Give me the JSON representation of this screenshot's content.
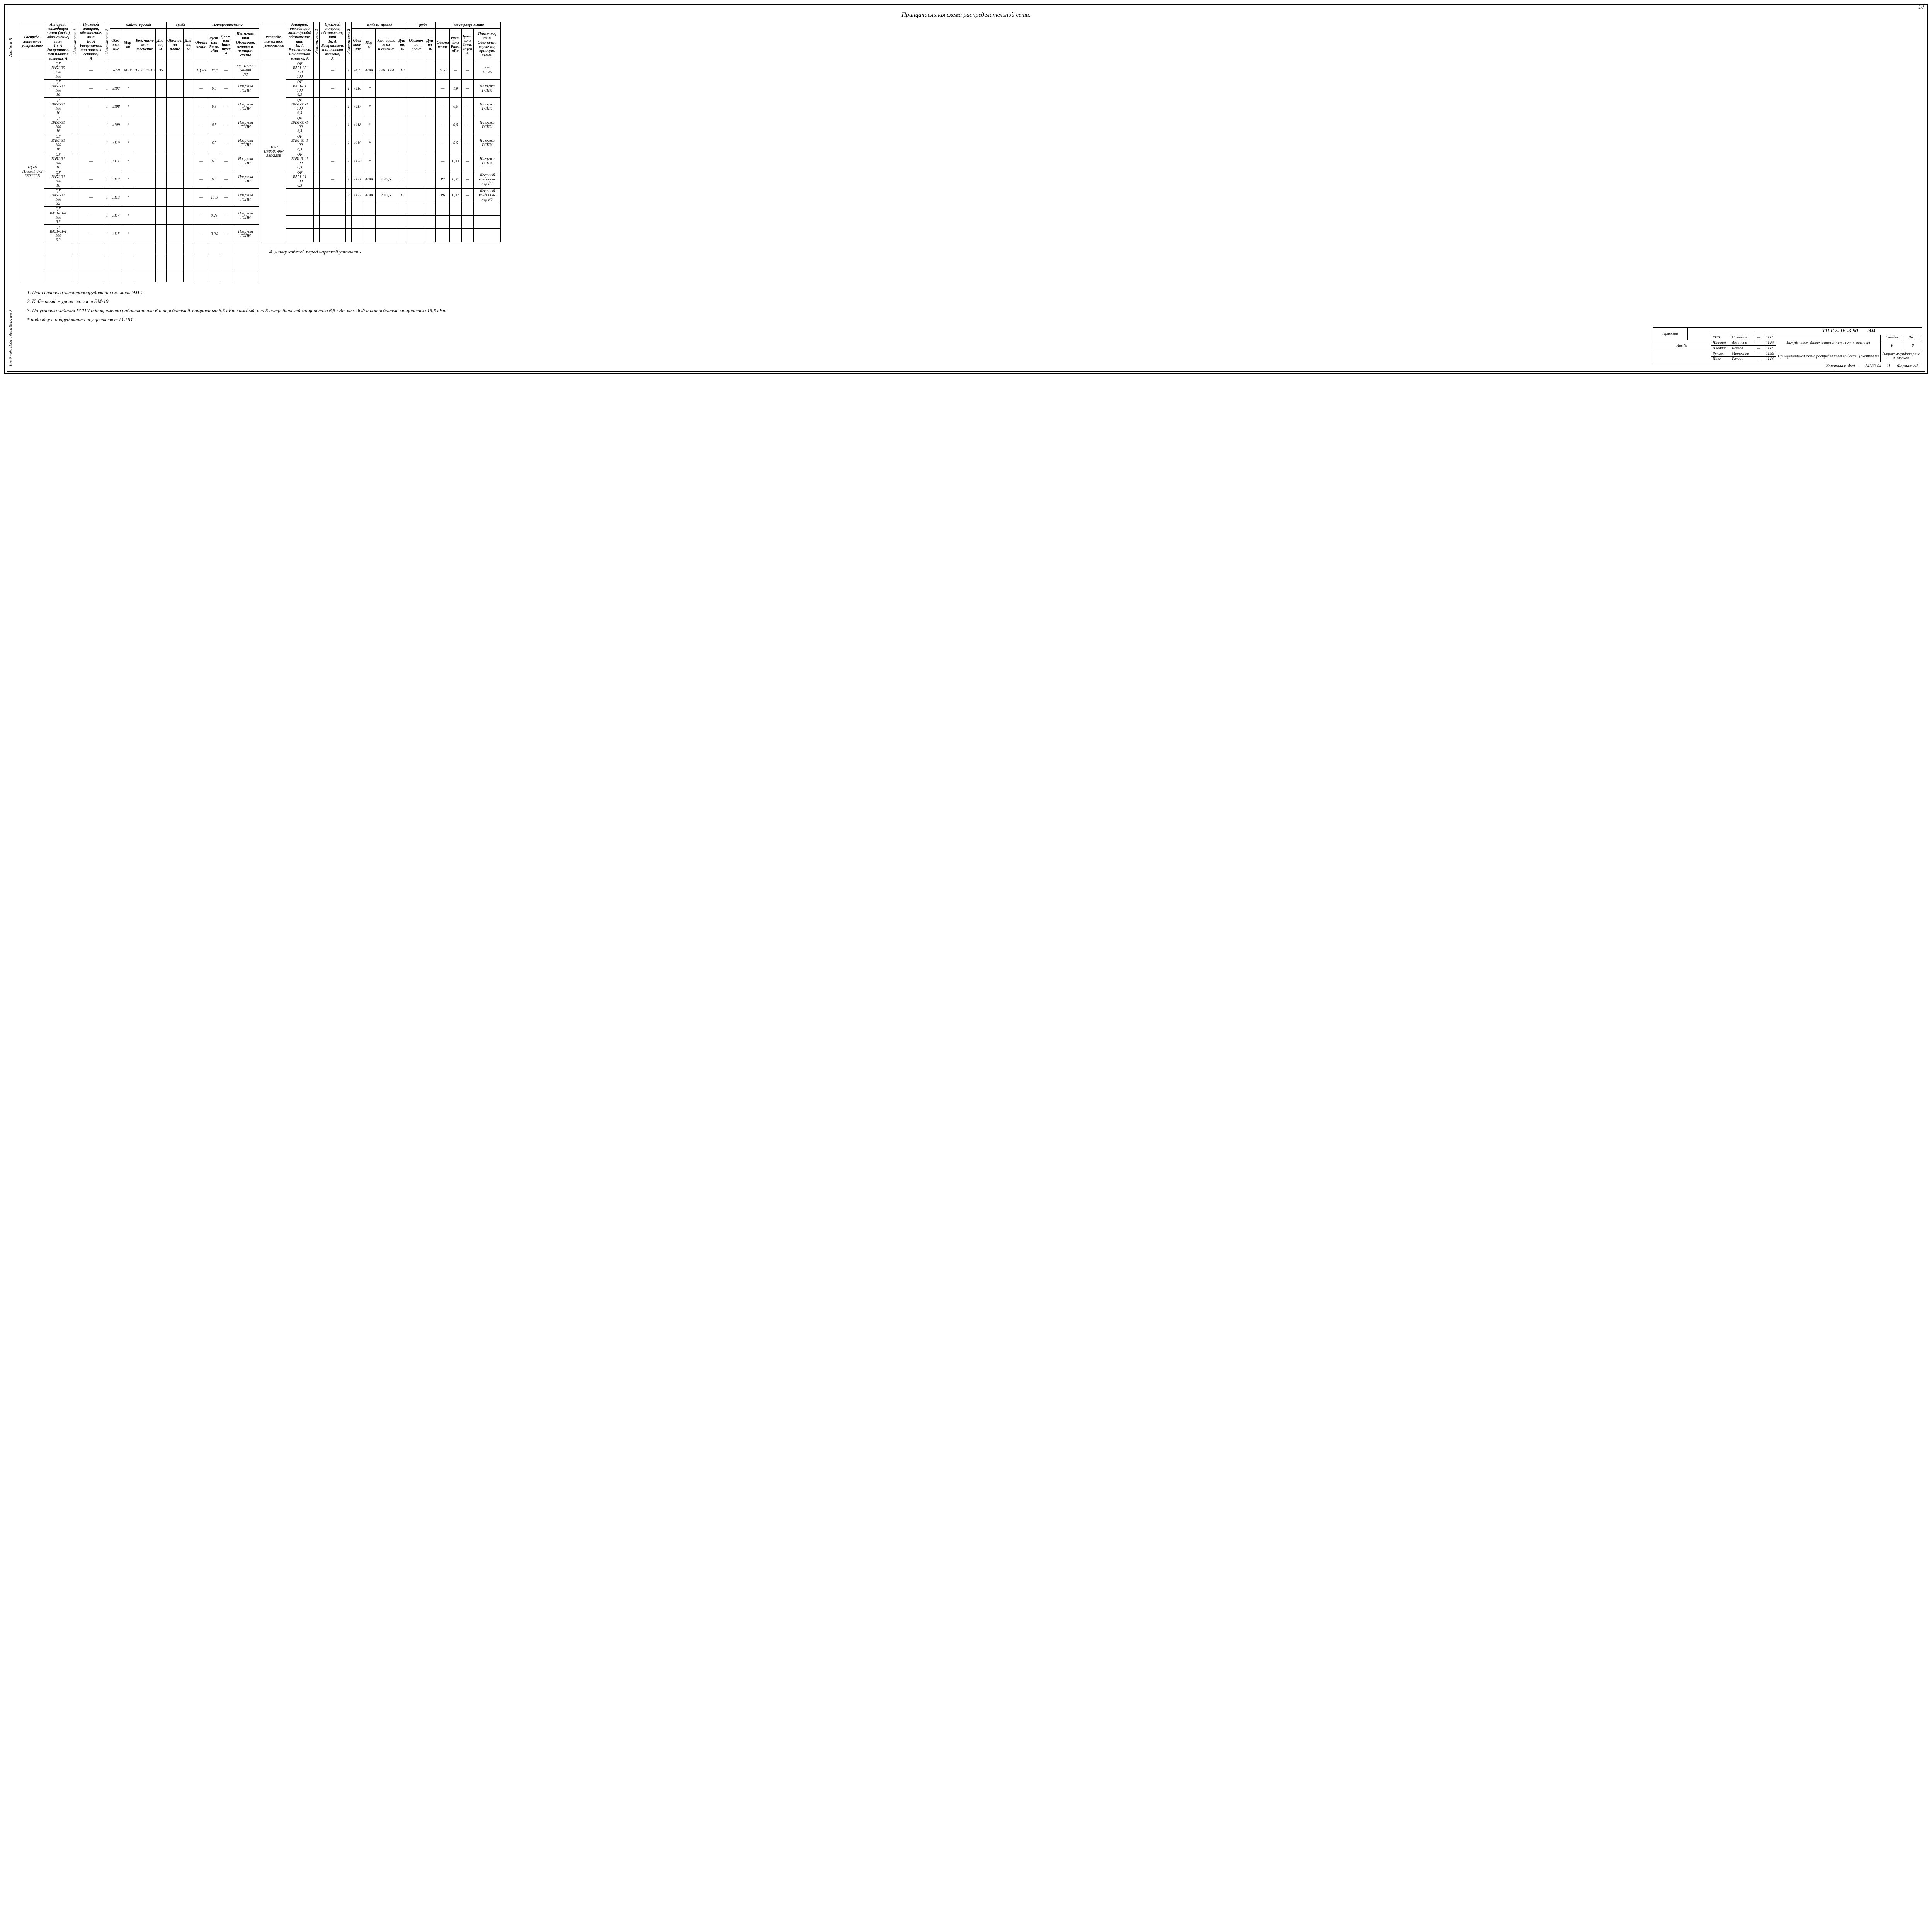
{
  "page_number": "10",
  "album": "Альбом 5",
  "title": "Принципиальная схема распределительной сети.",
  "side_labels": "Инв№подл. Подп. и дата  Взам. инв№",
  "headers": {
    "h1": "Распреде-\nлительное\nустройство",
    "h2": "Аппарат,\nотходящей\nлинии (ввода)\nобозначение,\nтип\nIн, А\nРасцепитель\nили плавкая\nвставка, А",
    "h3": "Участок сети 1",
    "h4": "Пусковой\nаппарат,\nобозначение,\nтип\nIн, А\nРасцепитель\nили плавкая\nвставка,\nА",
    "h5": "Участок сети 2",
    "h6": "Кабель, провод",
    "h6a": "Обоз-\nначе-\nние",
    "h6b": "Мар-\nка",
    "h6c": "Кол. число\nжил\nи сечение",
    "h6d": "Дли-\nна,\nм.",
    "h7": "Труба",
    "h7a": "Обознач.\nна\nплане",
    "h7b": "Дли-\nна,\nм.",
    "h8": "Электроприёмник",
    "h8a": "Обозна\nчение",
    "h8b": "Руст.\nили\nРном.\nкВт",
    "h8c": "Iрасч.\nили\nIном.\nIпуск\nА",
    "h8d": "Наименов,\nтип\nОбозначен.\nчертежа,\nпринцип.\nсхемы"
  },
  "left": {
    "device": "Щ н6\nПР8501-072\n380/220В",
    "rows": [
      {
        "app": "QF\nВА51-35\n250\n100",
        "pusk": "—",
        "n": "1",
        "oboz": "м.58",
        "mark": "АВВГ",
        "sech": "3×50+1×16",
        "len": "35",
        "tp": "",
        "tl": "",
        "eo": "Щ н6",
        "er": "48,4",
        "ei": "—",
        "en": "от ЩАУ2-\n50/400\nN3"
      },
      {
        "app": "QF\nВА51-31\n100\n16",
        "pusk": "—",
        "n": "1",
        "oboz": "л107",
        "mark": "*",
        "sech": "",
        "len": "",
        "tp": "",
        "tl": "",
        "eo": "—",
        "er": "6,5",
        "ei": "—",
        "en": "Нагрузка\nГСПИ"
      },
      {
        "app": "QF\nВА51-31\n100\n16",
        "pusk": "—",
        "n": "1",
        "oboz": "л108",
        "mark": "*",
        "sech": "",
        "len": "",
        "tp": "",
        "tl": "",
        "eo": "—",
        "er": "6,5",
        "ei": "—",
        "en": "Нагрузка\nГСПИ"
      },
      {
        "app": "QF\nВА51-31\n100\n16",
        "pusk": "—",
        "n": "1",
        "oboz": "л109",
        "mark": "*",
        "sech": "",
        "len": "",
        "tp": "",
        "tl": "",
        "eo": "—",
        "er": "6,5",
        "ei": "—",
        "en": "Нагрузка\nГСПИ"
      },
      {
        "app": "QF\nВА51-31\n100\n16",
        "pusk": "—",
        "n": "1",
        "oboz": "л110",
        "mark": "*",
        "sech": "",
        "len": "",
        "tp": "",
        "tl": "",
        "eo": "—",
        "er": "6,5",
        "ei": "—",
        "en": "Нагрузка\nГСПИ"
      },
      {
        "app": "QF\nВА51-31\n100\n16",
        "pusk": "—",
        "n": "1",
        "oboz": "л111",
        "mark": "*",
        "sech": "",
        "len": "",
        "tp": "",
        "tl": "",
        "eo": "—",
        "er": "6,5",
        "ei": "—",
        "en": "Нагрузка\nГСПИ"
      },
      {
        "app": "QF\nВА51-31\n100\n16",
        "pusk": "—",
        "n": "1",
        "oboz": "л112",
        "mark": "*",
        "sech": "",
        "len": "",
        "tp": "",
        "tl": "",
        "eo": "—",
        "er": "6,5",
        "ei": "—",
        "en": "Нагрузка\nГСПИ"
      },
      {
        "app": "QF\nВА51-31\n100\n32",
        "pusk": "—",
        "n": "1",
        "oboz": "л113",
        "mark": "*",
        "sech": "",
        "len": "",
        "tp": "",
        "tl": "",
        "eo": "—",
        "er": "15,6",
        "ei": "—",
        "en": "Нагрузка\nГСПИ"
      },
      {
        "app": "QF\nВА51-31-1\n100\n6,3",
        "pusk": "—",
        "n": "1",
        "oboz": "л114",
        "mark": "*",
        "sech": "",
        "len": "",
        "tp": "",
        "tl": "",
        "eo": "—",
        "er": "0,25",
        "ei": "—",
        "en": "Нагрузка\nГСПИ"
      },
      {
        "app": "QF\nВА51-31-1\n100\n6,3",
        "pusk": "—",
        "n": "1",
        "oboz": "л115",
        "mark": "*",
        "sech": "",
        "len": "",
        "tp": "",
        "tl": "",
        "eo": "—",
        "er": "0,04",
        "ei": "—",
        "en": "Нагрузка\nГСПИ"
      }
    ]
  },
  "right": {
    "device": "Щ н7\nПР8501-067\n380/220В",
    "rows": [
      {
        "app": "QF\nВА51-35\n250\n100",
        "pusk": "—",
        "n": "1",
        "oboz": "М59",
        "mark": "АВВГ",
        "sech": "3×6+1×4",
        "len": "10",
        "tp": "",
        "tl": "",
        "eo": "Щ н7",
        "er": "—",
        "ei": "—",
        "en": "от\nЩ н6"
      },
      {
        "app": "QF\nВА51-31\n100\n6,3",
        "pusk": "—",
        "n": "1",
        "oboz": "л116",
        "mark": "*",
        "sech": "",
        "len": "",
        "tp": "",
        "tl": "",
        "eo": "—",
        "er": "1,0",
        "ei": "—",
        "en": "Нагрузка\nГСПИ"
      },
      {
        "app": "QF\nВА51-31-1\n100\n6,3",
        "pusk": "—",
        "n": "1",
        "oboz": "л117",
        "mark": "*",
        "sech": "",
        "len": "",
        "tp": "",
        "tl": "",
        "eo": "—",
        "er": "0,5",
        "ei": "—",
        "en": "Нагрузка\nГСПИ"
      },
      {
        "app": "QF\nВА51-31-1\n100\n6,3",
        "pusk": "—",
        "n": "1",
        "oboz": "л118",
        "mark": "*",
        "sech": "",
        "len": "",
        "tp": "",
        "tl": "",
        "eo": "—",
        "er": "0,5",
        "ei": "—",
        "en": "Нагрузка\nГСПИ"
      },
      {
        "app": "QF\nВА51-31-1\n100\n6,3",
        "pusk": "—",
        "n": "1",
        "oboz": "л119",
        "mark": "*",
        "sech": "",
        "len": "",
        "tp": "",
        "tl": "",
        "eo": "—",
        "er": "0,5",
        "ei": "—",
        "en": "Нагрузка\nГСПИ"
      },
      {
        "app": "QF\nВА51-31-1\n100\n6,3",
        "pusk": "—",
        "n": "1",
        "oboz": "л120",
        "mark": "*",
        "sech": "",
        "len": "",
        "tp": "",
        "tl": "",
        "eo": "—",
        "er": "0,33",
        "ei": "—",
        "en": "Нагрузка\nГСПИ"
      },
      {
        "app": "QF\nВА51-31\n100\n6,3",
        "pusk": "—",
        "n": "1",
        "oboz": "л121",
        "mark": "АВВГ",
        "sech": "4×2,5",
        "len": "5",
        "tp": "",
        "tl": "",
        "eo": "Р7",
        "er": "0,37",
        "ei": "—",
        "en": "Местный\nкондицио-\nнер Р7"
      },
      {
        "app": "",
        "pusk": "",
        "n": "2",
        "oboz": "л122",
        "mark": "АВВГ",
        "sech": "4×2,5",
        "len": "15",
        "tp": "",
        "tl": "",
        "eo": "Р6",
        "er": "0,37",
        "ei": "—",
        "en": "Местный\nкондицио-\nнер Р6"
      }
    ]
  },
  "notes": [
    "1. План силового электрооборудования см. лист ЭМ-2.",
    "2. Кабельный журнал см. лист ЭМ-19.",
    "3. По условию задания ГСПИ одновременно работают или 6 потребителей мощностью 6,5 кВт каждый, или 5 потребителей мощностью 6,5 кВт каждый и потребитель мощностью 15,6 кВт.",
    "* подводку к оборудованию осуществляет ГСПИ."
  ],
  "note_right": "4. Длину кабелей перед нарезкой уточнить.",
  "stamp": {
    "code": "ТП Г.2- IV -3.90",
    "mark": "ЭМ",
    "priv": "Привязан",
    "invne": "Инв №",
    "roles": [
      [
        "ГИП",
        "Самитов",
        "11.89"
      ],
      [
        "Начотд",
        "Федотов",
        "11.89"
      ],
      [
        "Н.контр",
        "Козлов",
        "11.89"
      ],
      [
        "Рук.гр.",
        "Матренка",
        "11.89"
      ],
      [
        "Инж.",
        "Галкин",
        "11.89"
      ]
    ],
    "title1": "Заглубленное здание вспомогательного назначения",
    "title2": "Принципиальная схема распределительной сети. (окончание)",
    "org": "Гипрокоммундортранс\nг. Москва",
    "stage": "Р",
    "sheet": "8",
    "stage_h": "Стадия",
    "sheet_h": "Лист",
    "sheets_h": "Листов"
  },
  "footer": {
    "kop": "Копировал:",
    "num": "24383-04",
    "pg": "11",
    "fmt": "Формат А2"
  }
}
